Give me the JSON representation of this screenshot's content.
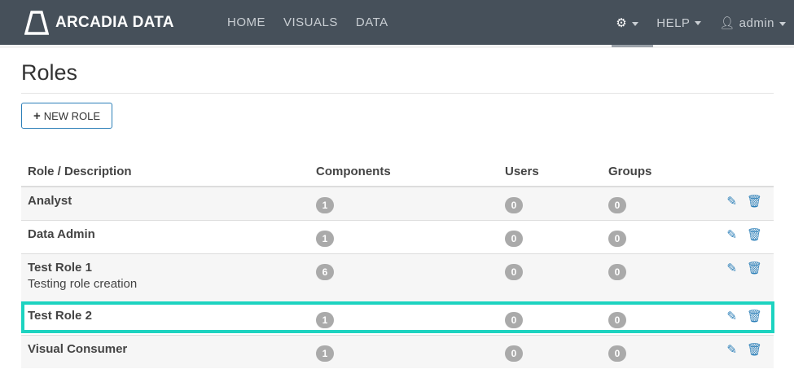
{
  "nav": {
    "brand": "ARCADIA DATA",
    "links": [
      "HOME",
      "VISUALS",
      "DATA"
    ],
    "help": "HELP",
    "user": "admin"
  },
  "page": {
    "title": "Roles",
    "new_role": "NEW ROLE"
  },
  "table": {
    "headers": [
      "Role / Description",
      "Components",
      "Users",
      "Groups"
    ],
    "rows": [
      {
        "name": "Analyst",
        "description": "",
        "components": "1",
        "users": "0",
        "groups": "0"
      },
      {
        "name": "Data Admin",
        "description": "",
        "components": "1",
        "users": "0",
        "groups": "0"
      },
      {
        "name": "Test Role 1",
        "description": "Testing role creation",
        "components": "6",
        "users": "0",
        "groups": "0"
      },
      {
        "name": "Test Role 2",
        "description": "",
        "components": "1",
        "users": "0",
        "groups": "0"
      },
      {
        "name": "Visual Consumer",
        "description": "",
        "components": "1",
        "users": "0",
        "groups": "0"
      }
    ]
  },
  "colors": {
    "navbar": "#46505a",
    "accent": "#2c7fb8",
    "highlight": "#1dd3c0"
  }
}
